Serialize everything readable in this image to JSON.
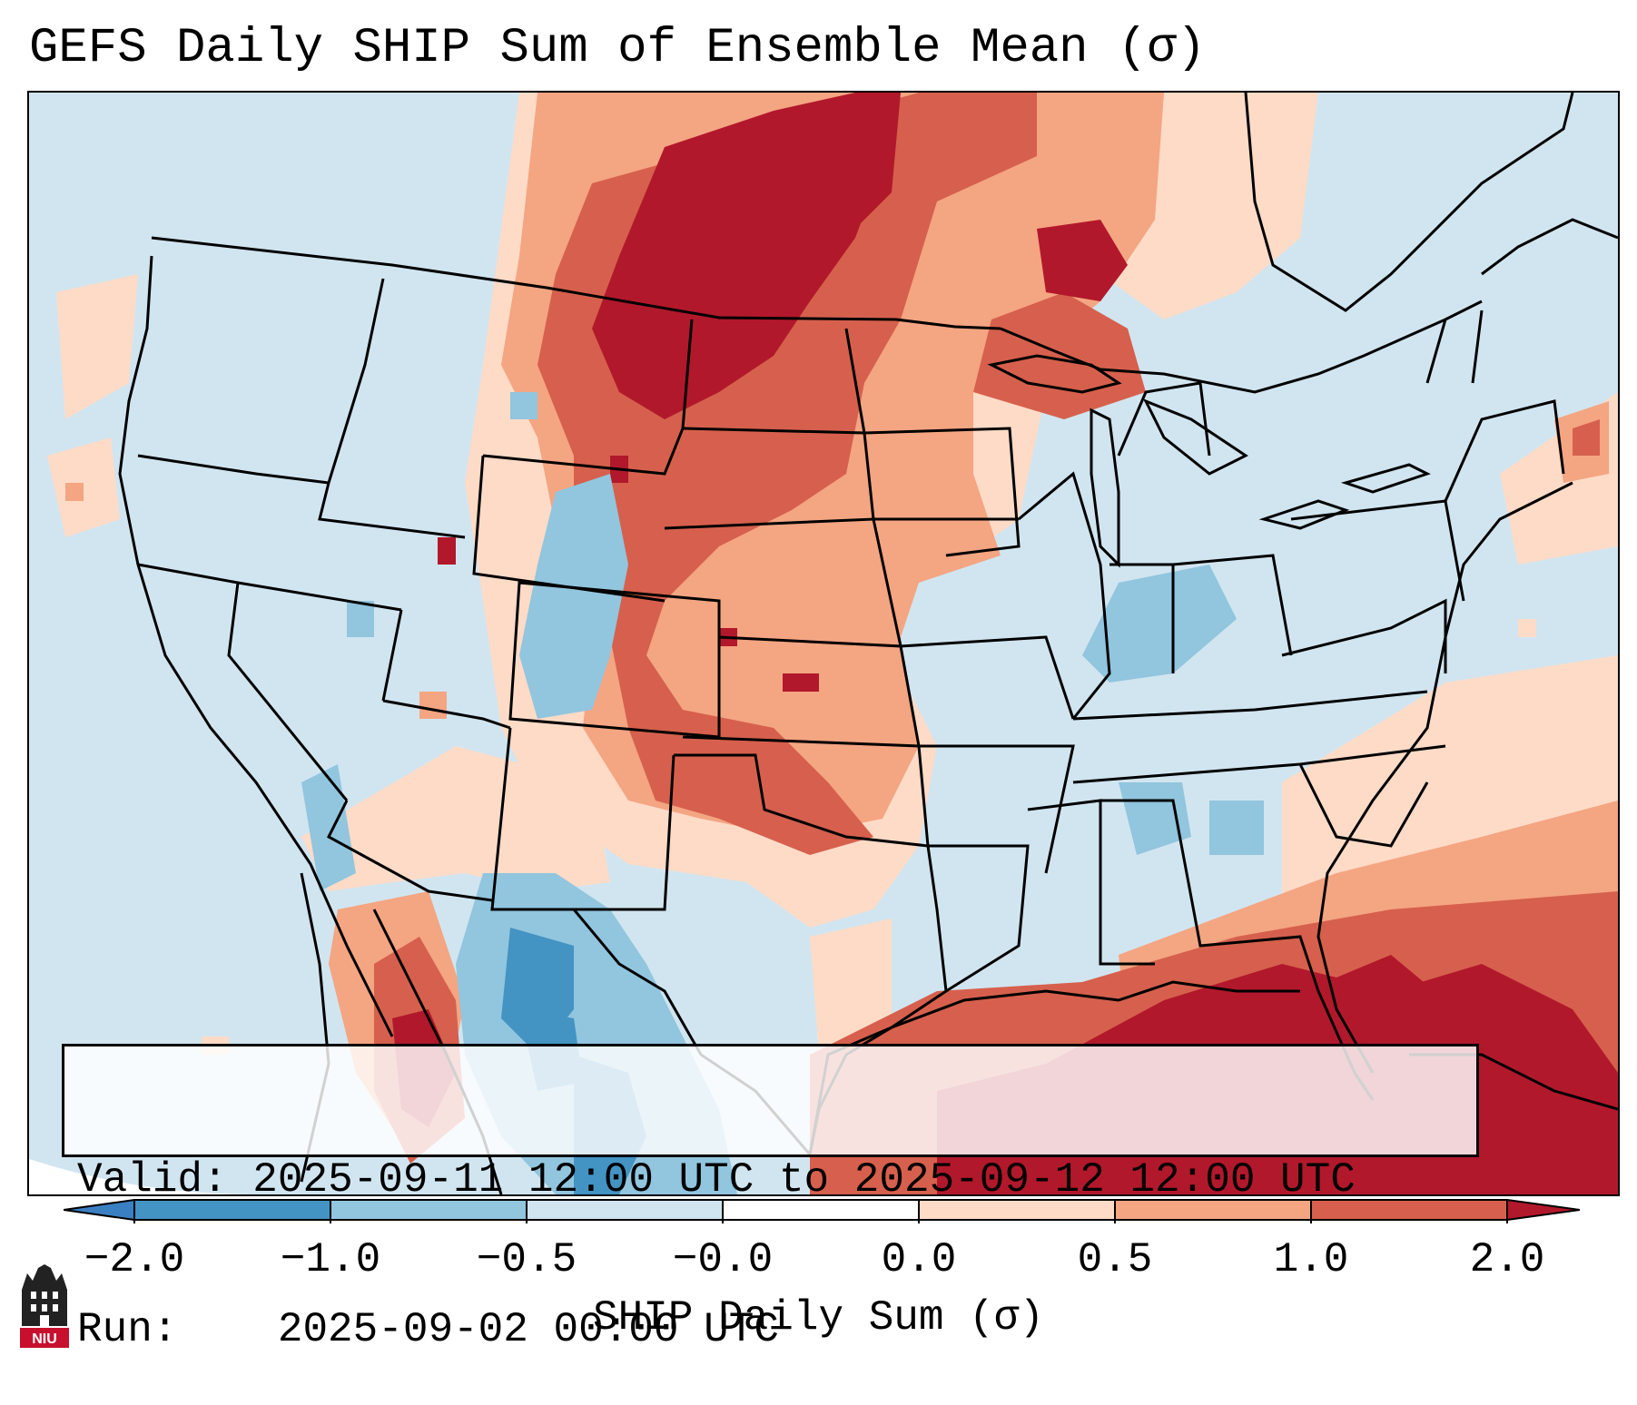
{
  "title": "GEFS Daily SHIP Sum of Ensemble Mean (σ)",
  "info_box": {
    "valid_label": "Valid:",
    "valid_value": "2025-09-11 12:00 UTC to 2025-09-12 12:00 UTC",
    "run_label": "Run:",
    "run_value": "2025-09-02 00:00 UTC"
  },
  "colorbar": {
    "label": "SHIP Daily Sum (σ)",
    "tick_labels": [
      "−2.0",
      "−1.0",
      "−0.5",
      "−0.0",
      "0.0",
      "0.5",
      "1.0",
      "2.0"
    ],
    "bins": [
      {
        "range": "< -2.0",
        "color": "#3a7fc1"
      },
      {
        "range": "-2.0 to -1.0",
        "color": "#4393c3"
      },
      {
        "range": "-1.0 to -0.5",
        "color": "#92c5de"
      },
      {
        "range": "-0.5 to -0.0",
        "color": "#d1e5f0"
      },
      {
        "range": "-0.0 to 0.0",
        "color": "#ffffff"
      },
      {
        "range": "0.0 to 0.5",
        "color": "#fddbc7"
      },
      {
        "range": "0.5 to 1.0",
        "color": "#f4a582"
      },
      {
        "range": "1.0 to 2.0",
        "color": "#d6604d"
      },
      {
        "range": "> 2.0",
        "color": "#b2182b"
      }
    ]
  },
  "logo": {
    "text": "NIU"
  }
}
